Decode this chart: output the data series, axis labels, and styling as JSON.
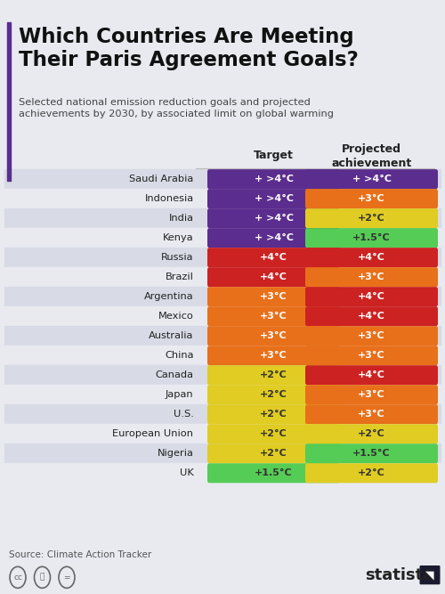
{
  "title": "Which Countries Are Meeting\nTheir Paris Agreement Goals?",
  "subtitle": "Selected national emission reduction goals and projected\nachievements by 2030, by associated limit on global warming",
  "source": "Source: Climate Action Tracker",
  "bg_color": "#e8eaf0",
  "title_bar_color": "#5b2d8e",
  "col_header1": "Target",
  "col_header2": "Projected\nachievement",
  "countries": [
    "Saudi Arabia",
    "Indonesia",
    "India",
    "Kenya",
    "Russia",
    "Brazil",
    "Argentina",
    "Mexico",
    "Australia",
    "China",
    "Canada",
    "Japan",
    "U.S.",
    "European Union",
    "Nigeria",
    "UK"
  ],
  "targets": [
    "+ >4°C",
    "+ >4°C",
    "+ >4°C",
    "+ >4°C",
    "+4°C",
    "+4°C",
    "+3°C",
    "+3°C",
    "+3°C",
    "+3°C",
    "+2°C",
    "+2°C",
    "+2°C",
    "+2°C",
    "+2°C",
    "+1.5°C"
  ],
  "projections": [
    "+ >4°C",
    "+3°C",
    "+2°C",
    "+1.5°C",
    "+4°C",
    "+3°C",
    "+4°C",
    "+4°C",
    "+3°C",
    "+3°C",
    "+4°C",
    "+3°C",
    "+3°C",
    "+2°C",
    "+1.5°C",
    "+2°C"
  ],
  "target_colors": [
    "#5b2d8e",
    "#5b2d8e",
    "#5b2d8e",
    "#5b2d8e",
    "#cc2222",
    "#cc2222",
    "#e8701a",
    "#e8701a",
    "#e8701a",
    "#e8701a",
    "#e0cc22",
    "#e0cc22",
    "#e0cc22",
    "#e0cc22",
    "#e0cc22",
    "#55cc55"
  ],
  "projection_colors": [
    "#5b2d8e",
    "#e8701a",
    "#e0cc22",
    "#55cc55",
    "#cc2222",
    "#e8701a",
    "#cc2222",
    "#cc2222",
    "#e8701a",
    "#e8701a",
    "#cc2222",
    "#e8701a",
    "#e8701a",
    "#e0cc22",
    "#55cc55",
    "#e0cc22"
  ],
  "target_text_colors": [
    "#ffffff",
    "#ffffff",
    "#ffffff",
    "#ffffff",
    "#ffffff",
    "#ffffff",
    "#ffffff",
    "#ffffff",
    "#ffffff",
    "#ffffff",
    "#333333",
    "#333333",
    "#333333",
    "#333333",
    "#333333",
    "#333333"
  ],
  "projection_text_colors": [
    "#ffffff",
    "#ffffff",
    "#333333",
    "#333333",
    "#ffffff",
    "#ffffff",
    "#ffffff",
    "#ffffff",
    "#ffffff",
    "#ffffff",
    "#ffffff",
    "#ffffff",
    "#ffffff",
    "#333333",
    "#333333",
    "#333333"
  ],
  "row_colors": [
    "#d8dbe5",
    "#e8eaf0"
  ]
}
